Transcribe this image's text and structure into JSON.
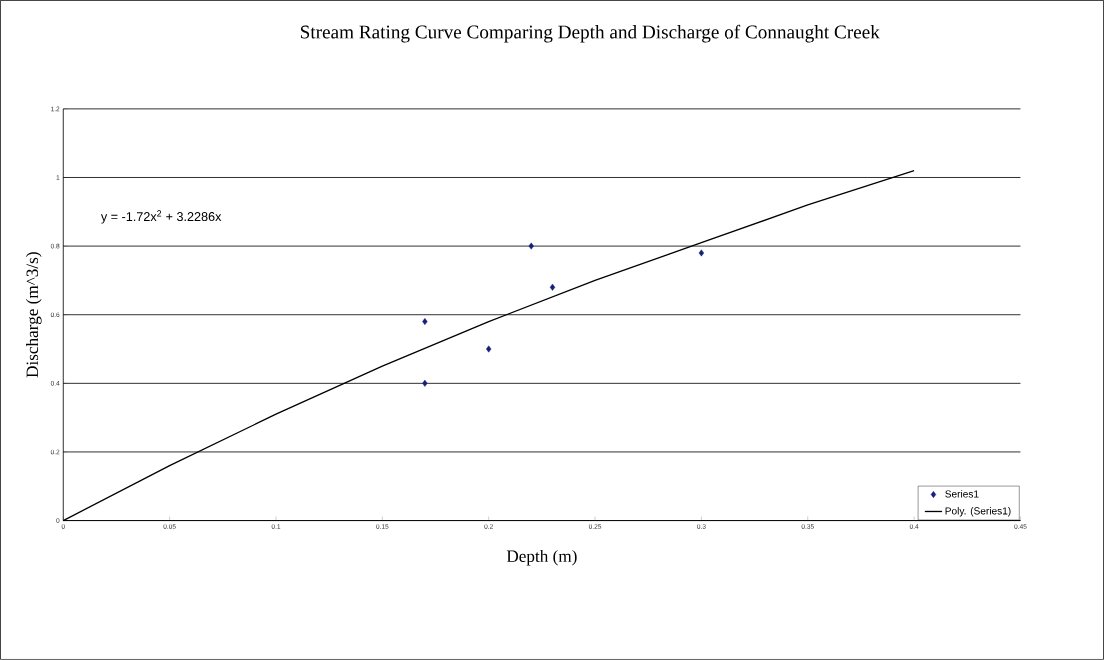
{
  "chart_data": {
    "type": "scatter",
    "title": "Stream Rating Curve Comparing Depth and Discharge of Connaught Creek",
    "xlabel": "Depth (m)",
    "ylabel": "Discharge (m^3/s)",
    "annotations": [
      "y = -1.72x$^{2}$ + 3.2286x"
    ],
    "xlim": [
      0,
      0.45
    ],
    "ylim": [
      0,
      1.2
    ],
    "xticks": [
      0,
      0.05,
      0.1,
      0.15,
      0.2,
      0.25,
      0.3,
      0.35,
      0.4,
      0.45
    ],
    "yticks": [
      0,
      0.2,
      0.4,
      0.6,
      0.8,
      1,
      1.2
    ],
    "grid": "y",
    "legend": "bottom right",
    "series": [
      {
        "name": "Series1",
        "marker": "diamond",
        "color": "#14207a",
        "x": [
          0.17,
          0.17,
          0.2,
          0.22,
          0.23,
          0.3
        ],
        "values": [
          0.58,
          0.4,
          0.5,
          0.8,
          0.68,
          0.78
        ]
      },
      {
        "name": "Poly. (Series1)",
        "type": "line",
        "marker": "none",
        "color": "#000000",
        "x": [
          0,
          0.05,
          0.1,
          0.15,
          0.2,
          0.25,
          0.3,
          0.35,
          0.4
        ],
        "values": [
          0,
          0.16,
          0.31,
          0.45,
          0.58,
          0.7,
          0.81,
          0.92,
          1.02
        ]
      }
    ]
  }
}
